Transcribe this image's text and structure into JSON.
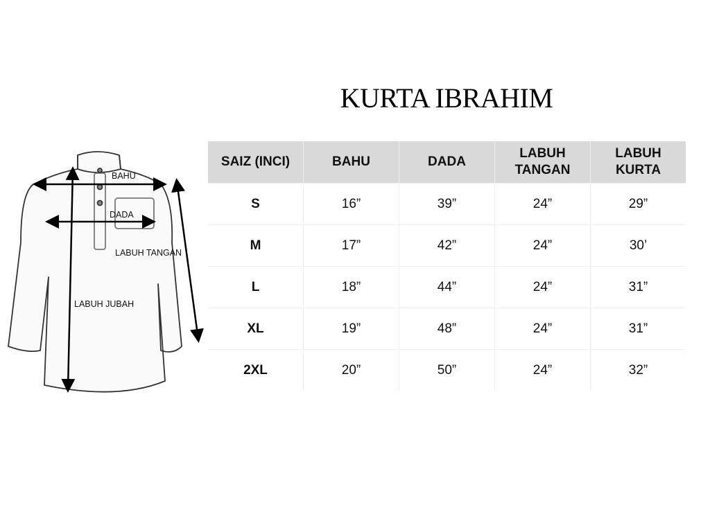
{
  "title": "KURTA IBRAHIM",
  "diagram": {
    "labels": {
      "bahu": "BAHU",
      "dada": "DADA",
      "labuh_tangan": "LABUH TANGAN",
      "labuh_jubah": "LABUH JUBAH"
    }
  },
  "table": {
    "headers": [
      "SAIZ (INCI)",
      "BAHU",
      "DADA",
      "LABUH\nTANGAN",
      "LABUH\nKURTA"
    ],
    "header_bg": "#d9d9d9",
    "rows": [
      [
        "S",
        "16”",
        "39”",
        "24”",
        "29”"
      ],
      [
        "M",
        "17”",
        "42”",
        "24”",
        "30’"
      ],
      [
        "L",
        "18”",
        "44”",
        "24”",
        "31”"
      ],
      [
        "XL",
        "19”",
        "48”",
        "24”",
        "31”"
      ],
      [
        "2XL",
        "20”",
        "50”",
        "24”",
        "32”"
      ]
    ]
  }
}
